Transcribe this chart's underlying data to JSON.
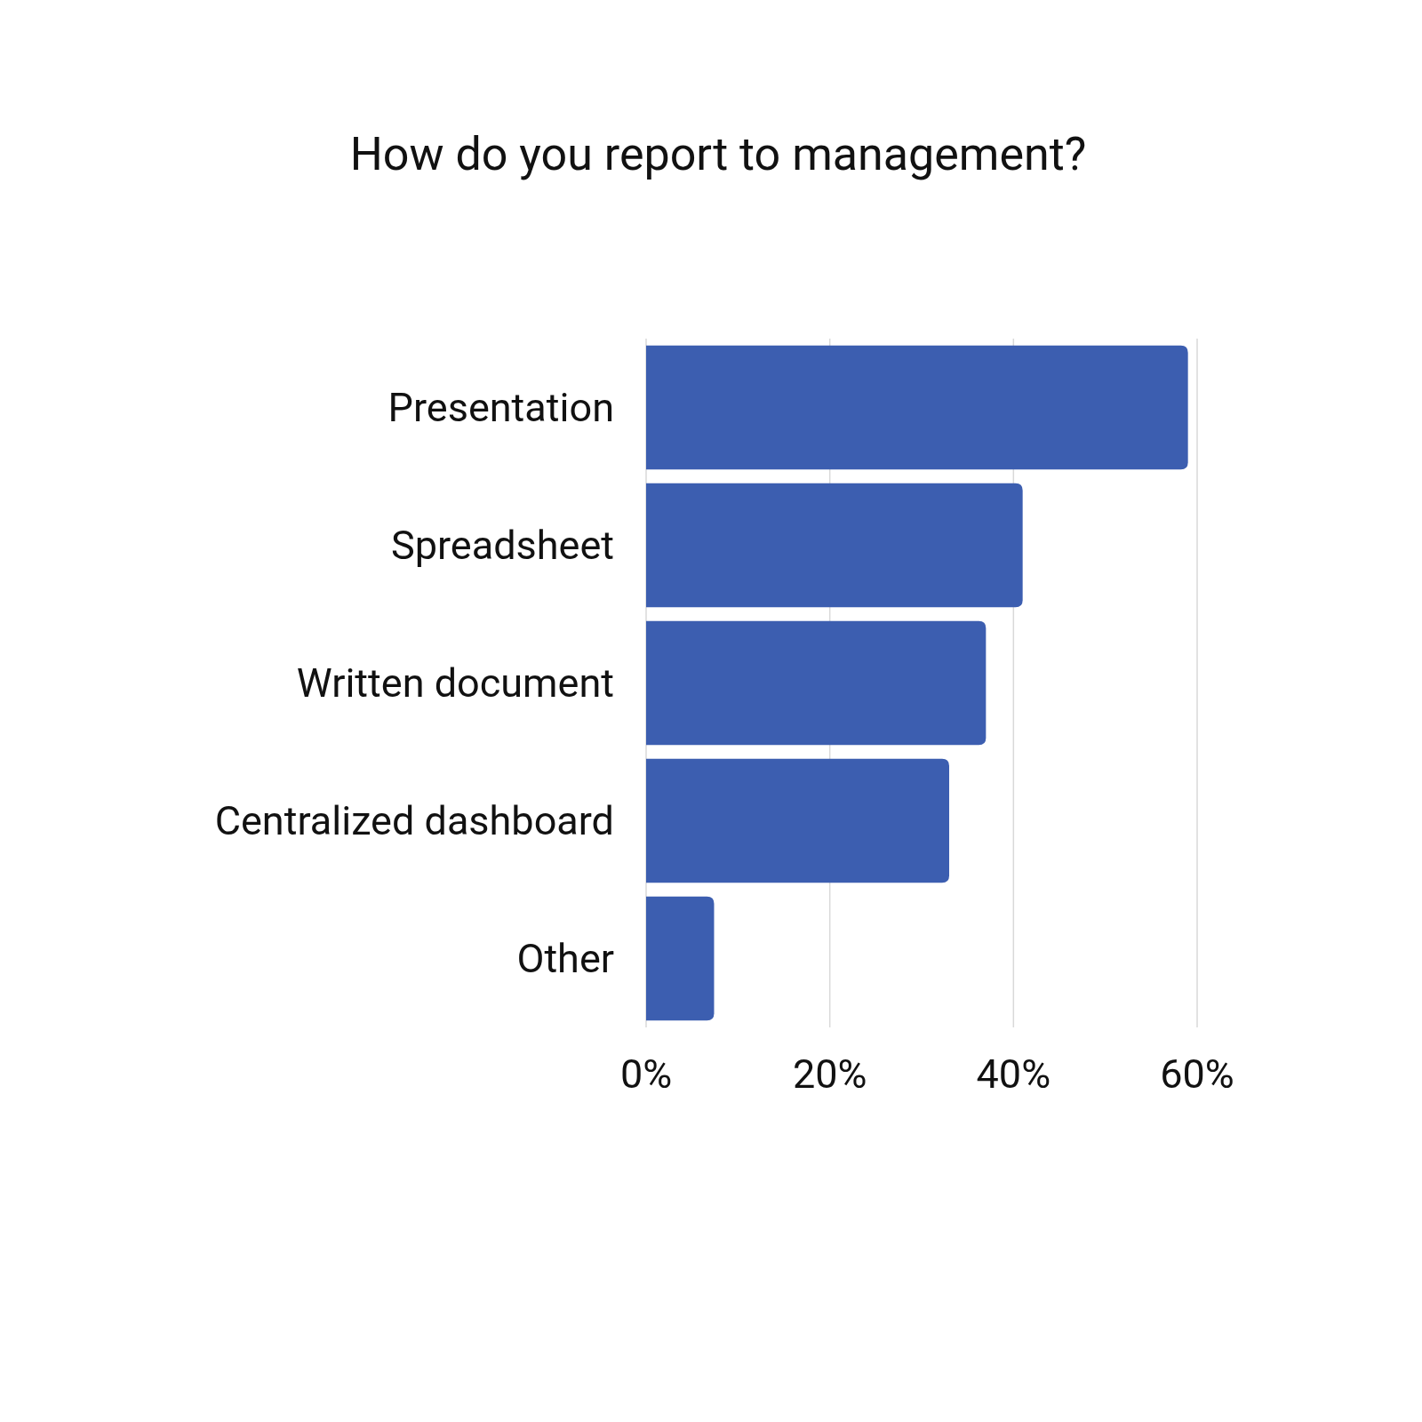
{
  "chart_data": {
    "type": "bar",
    "orientation": "horizontal",
    "title": "How do you report to management?",
    "categories": [
      "Presentation",
      "Spreadsheet",
      "Written document",
      "Centralized dashboard",
      "Other"
    ],
    "values": [
      59,
      41,
      37,
      33,
      7.4
    ],
    "color": "#3c5eb0",
    "xlim": [
      0,
      60
    ],
    "xticks": [
      {
        "value": 0,
        "label": "0%"
      },
      {
        "value": 20,
        "label": "20%"
      },
      {
        "value": 40,
        "label": "40%"
      },
      {
        "value": 60,
        "label": "60%"
      }
    ],
    "grid": "x"
  }
}
